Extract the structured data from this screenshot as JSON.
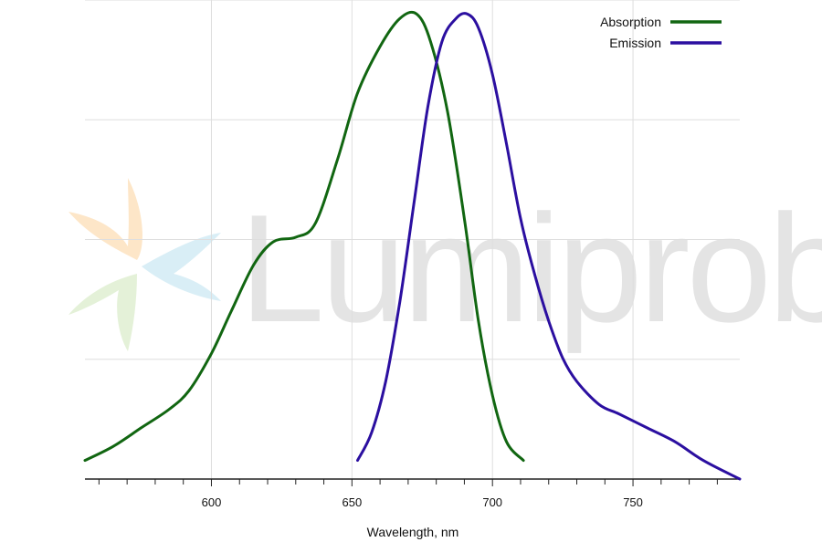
{
  "watermark": {
    "text": "Lumiprobe"
  },
  "colors": {
    "absorption": "#116611",
    "emission": "#2b0fa0",
    "grid": "#dedede",
    "axis": "#222222"
  },
  "chart_data": {
    "type": "line",
    "title": "",
    "xlabel": "Wavelength, nm",
    "ylabel": "",
    "xlim": [
      555,
      788
    ],
    "ylim": [
      0,
      1.03
    ],
    "xticks": [
      600,
      650,
      700,
      750
    ],
    "xtick_labels": [
      "600",
      "650",
      "700",
      "750"
    ],
    "minor_xtick_step": 10,
    "grid": true,
    "legend": "top-right",
    "series": [
      {
        "name": "Absorption",
        "color": "#116611",
        "x": [
          555,
          565,
          575,
          585,
          592,
          600,
          607,
          615,
          622,
          630,
          637,
          645,
          652,
          660,
          667,
          673,
          678,
          684,
          690,
          695,
          700,
          705,
          711
        ],
        "y": [
          0.04,
          0.07,
          0.11,
          0.15,
          0.19,
          0.27,
          0.36,
          0.46,
          0.51,
          0.52,
          0.55,
          0.69,
          0.83,
          0.93,
          0.99,
          1.0,
          0.94,
          0.79,
          0.56,
          0.34,
          0.18,
          0.08,
          0.04
        ]
      },
      {
        "name": "Emission",
        "color": "#2b0fa0",
        "x": [
          652,
          657,
          662,
          667,
          672,
          677,
          682,
          687,
          691,
          695,
          700,
          705,
          710,
          715,
          720,
          725,
          730,
          738,
          745,
          755,
          765,
          775,
          788
        ],
        "y": [
          0.04,
          0.1,
          0.21,
          0.38,
          0.59,
          0.8,
          0.94,
          0.99,
          1.0,
          0.97,
          0.87,
          0.72,
          0.56,
          0.44,
          0.34,
          0.26,
          0.21,
          0.16,
          0.14,
          0.11,
          0.08,
          0.04,
          0.0
        ]
      }
    ]
  }
}
